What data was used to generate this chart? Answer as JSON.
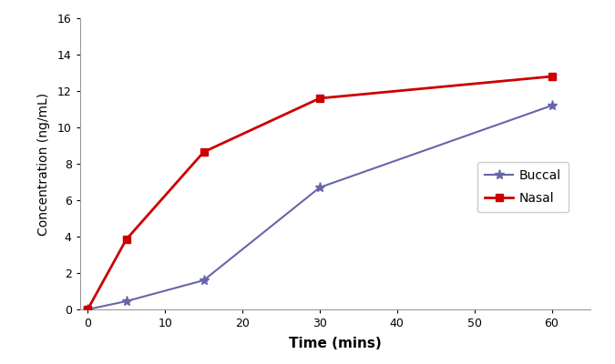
{
  "buccal_x": [
    0,
    5,
    15,
    30,
    60
  ],
  "buccal_y": [
    0,
    0.45,
    1.6,
    6.7,
    11.2
  ],
  "nasal_x": [
    0,
    5,
    15,
    30,
    60
  ],
  "nasal_y": [
    0,
    3.85,
    8.65,
    11.6,
    12.8
  ],
  "buccal_color": "#6666aa",
  "nasal_color": "#cc0000",
  "xlabel": "Time (mins)",
  "ylabel": "Concentration (ng/mL)",
  "xlim": [
    -1,
    65
  ],
  "ylim": [
    0,
    16
  ],
  "xticks": [
    0,
    10,
    20,
    30,
    40,
    50,
    60
  ],
  "yticks": [
    0,
    2,
    4,
    6,
    8,
    10,
    12,
    14,
    16
  ],
  "legend_buccal": "Buccal",
  "legend_nasal": "Nasal",
  "background_color": "#ffffff",
  "figure_width": 6.75,
  "figure_height": 4.0,
  "dpi": 100
}
